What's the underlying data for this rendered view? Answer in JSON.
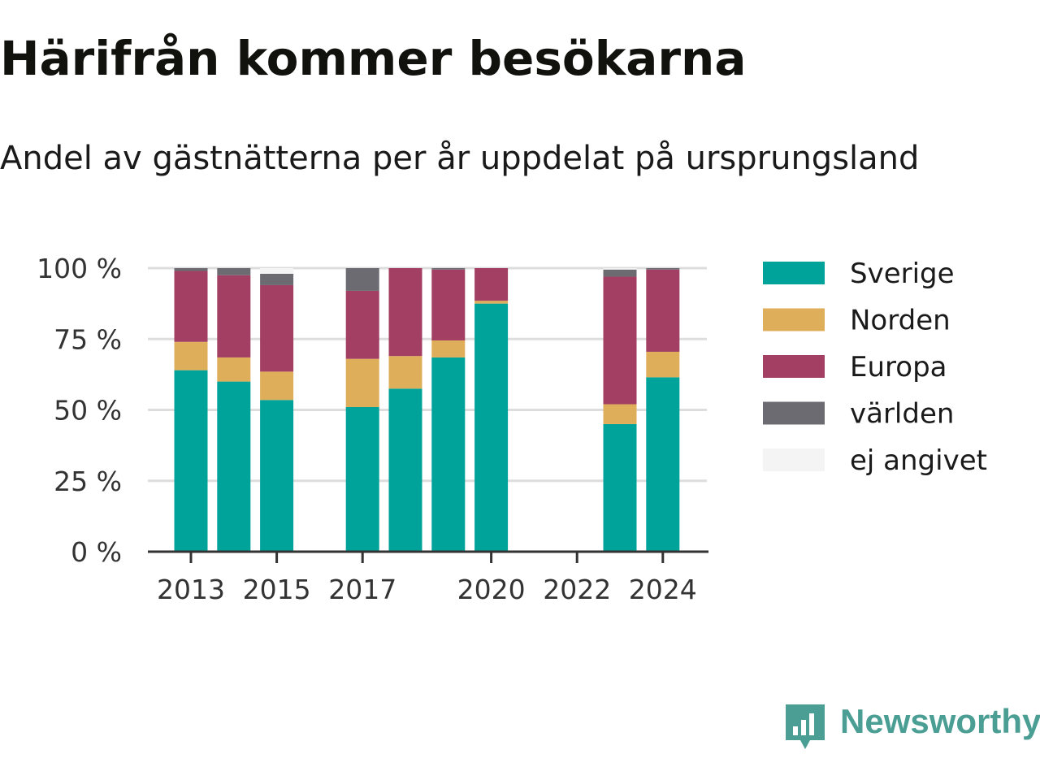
{
  "header": {
    "title": "Härifrån kommer besökarna",
    "subtitle": "Andel av gästnätterna per år uppdelat på ursprungsland"
  },
  "brand": {
    "name": "Newsworthy",
    "icon": "newsworthy-logo-icon",
    "color": "#4a9e93"
  },
  "chart_data": {
    "type": "bar",
    "stacked": true,
    "categories": [
      "2013",
      "2014",
      "2015",
      "2016",
      "2017",
      "2018",
      "2019",
      "2020",
      "2021",
      "2022",
      "2023",
      "2024"
    ],
    "x_tick_labels": [
      "2013",
      "2015",
      "2017",
      "2020",
      "2022",
      "2024"
    ],
    "y_ticks": [
      "0 %",
      "25 %",
      "50 %",
      "75 %",
      "100 %"
    ],
    "ylim": [
      0,
      100
    ],
    "grid": true,
    "legend_position": "right",
    "series": [
      {
        "name": "Sverige",
        "color": "#00a39a",
        "values": [
          64,
          60,
          53.5,
          null,
          51,
          57.5,
          68.5,
          87.5,
          null,
          null,
          45,
          61.5
        ]
      },
      {
        "name": "Norden",
        "color": "#dfae5b",
        "values": [
          10,
          8.5,
          10,
          null,
          17,
          11.5,
          6,
          1,
          null,
          null,
          7,
          9
        ]
      },
      {
        "name": "Europa",
        "color": "#a33f63",
        "values": [
          25,
          29,
          30.5,
          null,
          24,
          31,
          25,
          11.5,
          null,
          null,
          45,
          29
        ]
      },
      {
        "name": "världen",
        "color": "#6c6b72",
        "values": [
          1,
          2.5,
          4,
          null,
          8,
          0,
          0.5,
          0,
          null,
          null,
          2.5,
          0.5
        ]
      },
      {
        "name": "ej angivet",
        "color": "#f4f4f4",
        "values": [
          0,
          0,
          2,
          null,
          0,
          0,
          0,
          0,
          null,
          null,
          0.5,
          0
        ]
      }
    ]
  }
}
